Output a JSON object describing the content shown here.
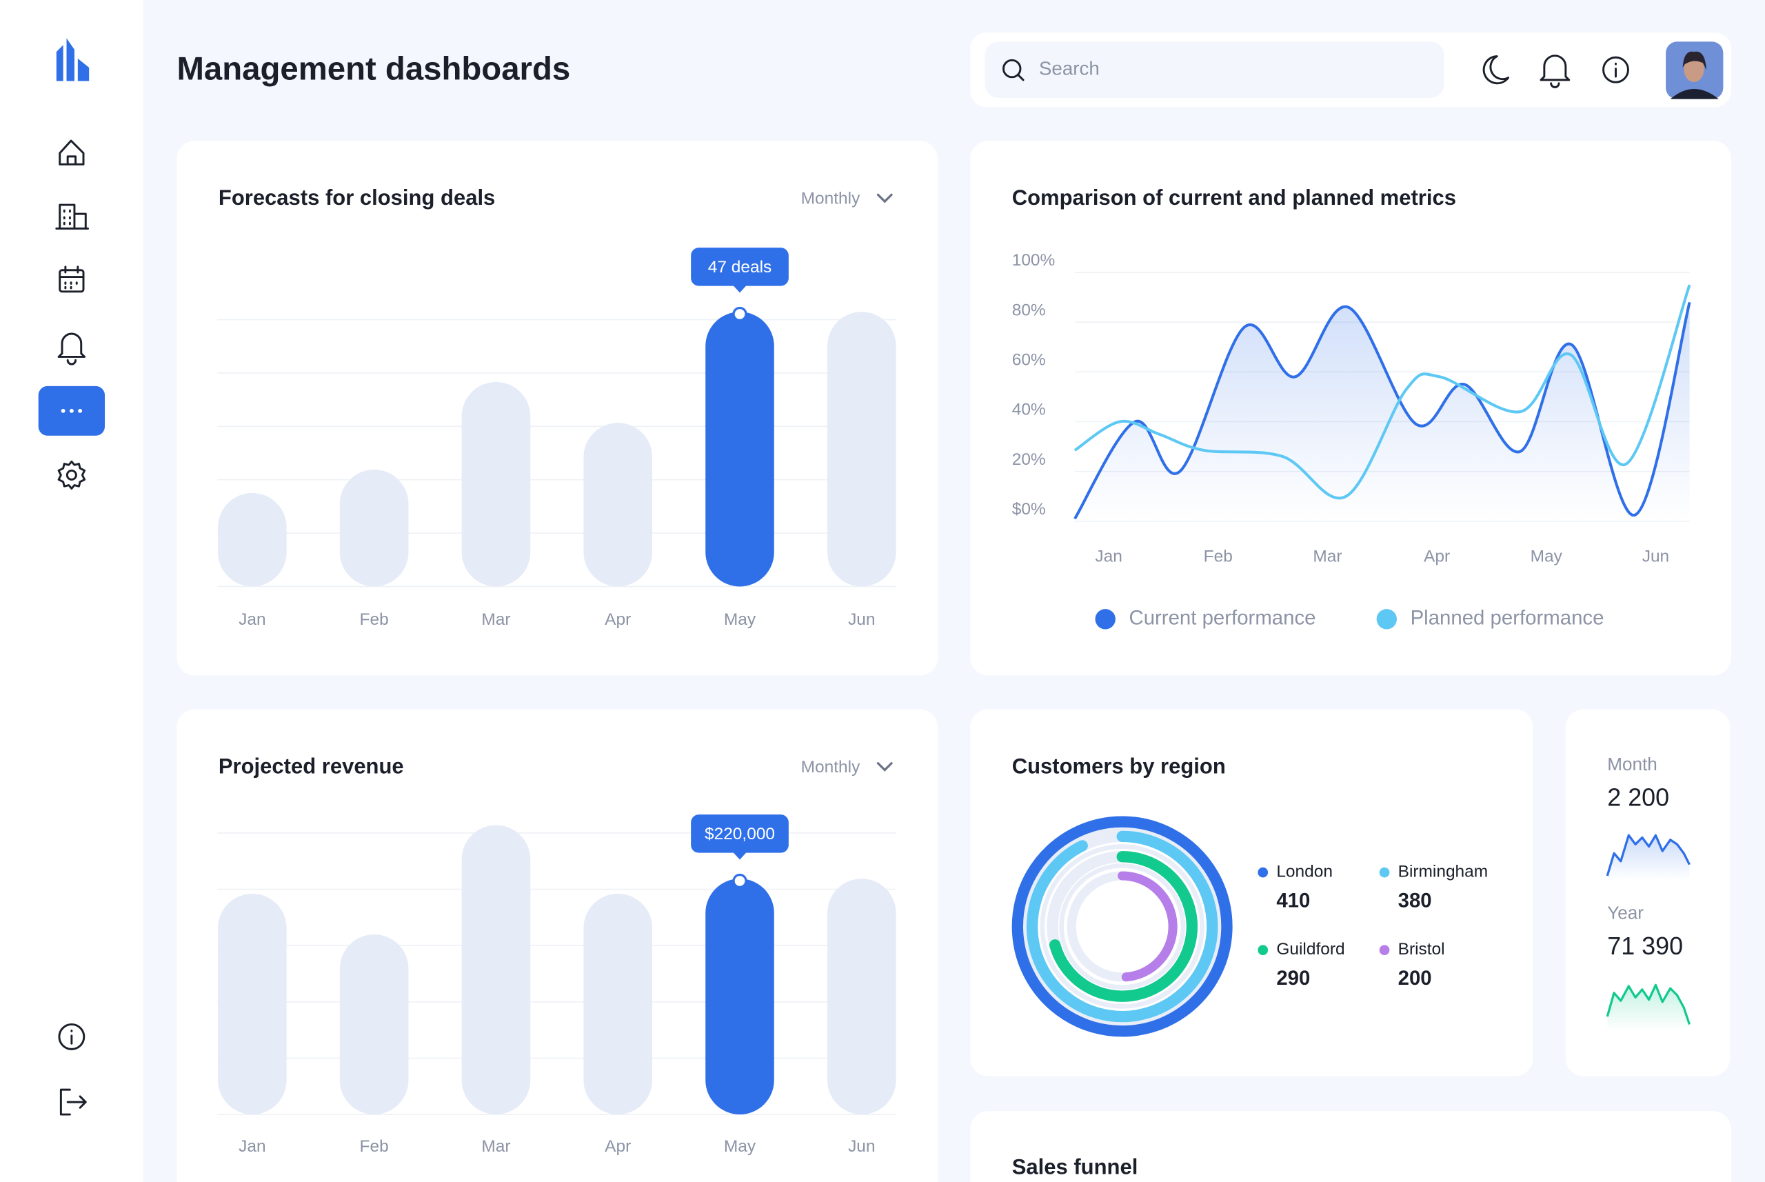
{
  "header": {
    "title": "Management dashboards",
    "search_placeholder": "Search"
  },
  "chart_data": [
    {
      "type": "bar",
      "title": "Forecasts for closing deals",
      "period": "Monthly",
      "categories": [
        "Jan",
        "Feb",
        "Mar",
        "Apr",
        "May",
        "Jun"
      ],
      "values": [
        16,
        20,
        35,
        28,
        47,
        47
      ],
      "value_labels": [
        null,
        null,
        null,
        null,
        "47 deals",
        null
      ],
      "color": "#e5ebf7",
      "highlight_color": "#2f6fe8"
    },
    {
      "type": "line",
      "title": "Comparison of current and planned metrics",
      "categories": [
        "Jan",
        "Feb",
        "Mar",
        "Apr",
        "May",
        "Jun"
      ],
      "ylim": [
        0,
        100
      ],
      "yticks": [
        {
          "value": 100,
          "label": "100%"
        },
        {
          "value": 80,
          "label": "80%"
        },
        {
          "value": 60,
          "label": "60%"
        },
        {
          "value": 40,
          "label": "40%"
        },
        {
          "value": 20,
          "label": "20%"
        },
        {
          "value": 0,
          "label": "$0%"
        }
      ],
      "grid": true,
      "series": [
        {
          "name": "Current performance",
          "color": "#2f6fe8",
          "x": [
            -0.31,
            0.24,
            0.65,
            1.24,
            1.7,
            2.19,
            2.81,
            3.25,
            3.76,
            4.23,
            4.81,
            5.31
          ],
          "values": [
            1,
            40,
            20,
            78,
            58,
            86,
            39,
            55,
            28,
            71,
            2.5,
            88
          ]
        },
        {
          "name": "Planned performance",
          "color": "#5ec8f5",
          "x": [
            -0.31,
            0.1,
            0.46,
            0.87,
            1.59,
            2.17,
            2.72,
            3.03,
            3.76,
            4.22,
            4.73,
            5.31
          ],
          "values": [
            28.5,
            40,
            35,
            28.5,
            26,
            10,
            53,
            58,
            44,
            67,
            23,
            95
          ]
        }
      ]
    },
    {
      "type": "bar",
      "title": "Projected revenue",
      "period": "Monthly",
      "categories": [
        "Jan",
        "Feb",
        "Mar",
        "Apr",
        "May",
        "Jun"
      ],
      "values": [
        206000,
        168000,
        270000,
        206000,
        220000,
        220000
      ],
      "value_labels": [
        null,
        null,
        null,
        null,
        "$220,000",
        null
      ],
      "color": "#e5ebf7",
      "highlight_color": "#2f6fe8"
    },
    {
      "type": "donut",
      "title": "Customers by region",
      "categories": [
        "London",
        "Birmingham",
        "Guildford",
        "Bristol"
      ],
      "values": [
        410,
        380,
        290,
        200
      ],
      "colors": [
        "#2f6fe8",
        "#5ec8f5",
        "#12c98e",
        "#b57ee8"
      ]
    }
  ],
  "stats": [
    {
      "label": "Month",
      "value": "2 200"
    },
    {
      "label": "Year",
      "value": "71 390"
    }
  ],
  "sales_funnel": {
    "title": "Sales funnel"
  }
}
